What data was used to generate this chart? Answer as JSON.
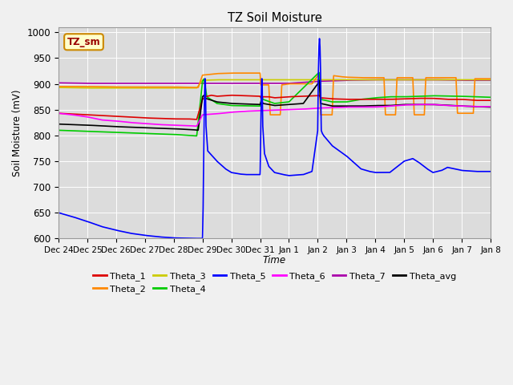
{
  "title": "TZ Soil Moisture",
  "ylabel": "Soil Moisture (mV)",
  "xlabel": "Time",
  "ylim": [
    600,
    1010
  ],
  "yticks": [
    600,
    650,
    700,
    750,
    800,
    850,
    900,
    950,
    1000
  ],
  "plot_bg": "#dcdcdc",
  "fig_bg": "#f0f0f0",
  "legend_label": "TZ_sm",
  "xtick_labels": [
    "Dec 24",
    "Dec 25",
    "Dec 26",
    "Dec 27",
    "Dec 28",
    "Dec 29",
    "Dec 30",
    "Dec 31",
    "Jan 1",
    "Jan 2",
    "Jan 3",
    "Jan 4",
    "Jan 5",
    "Jan 6",
    "Jan 7",
    "Jan 8"
  ],
  "series_colors": {
    "Theta_1": "#dd0000",
    "Theta_2": "#ff8800",
    "Theta_3": "#cccc00",
    "Theta_4": "#00cc00",
    "Theta_5": "#0000ff",
    "Theta_6": "#ff00ff",
    "Theta_7": "#aa00aa",
    "Theta_avg": "#000000"
  }
}
